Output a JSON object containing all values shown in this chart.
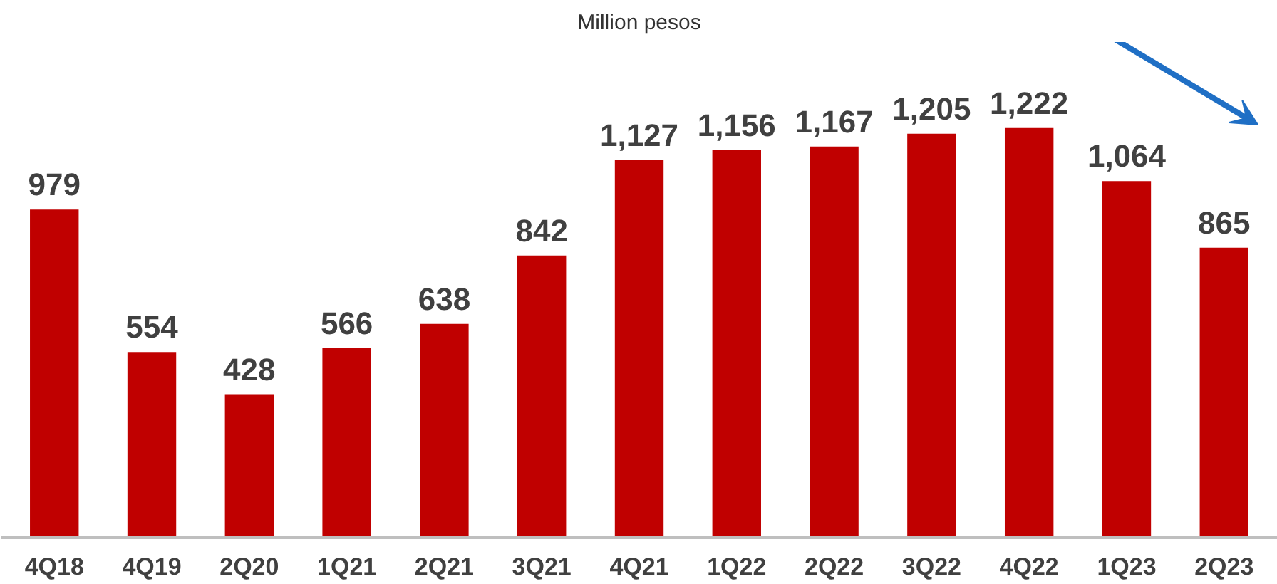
{
  "chart_data": {
    "type": "bar",
    "subtitle": "Million pesos",
    "categories": [
      "4Q18",
      "4Q19",
      "2Q20",
      "1Q21",
      "2Q21",
      "3Q21",
      "4Q21",
      "1Q22",
      "2Q22",
      "3Q22",
      "4Q22",
      "1Q23",
      "2Q23"
    ],
    "values": [
      979,
      554,
      428,
      566,
      638,
      842,
      1127,
      1156,
      1167,
      1205,
      1222,
      1064,
      865
    ],
    "value_labels": [
      "979",
      "554",
      "428",
      "566",
      "638",
      "842",
      "1,127",
      "1,156",
      "1,167",
      "1,205",
      "1,222",
      "1,064",
      "865"
    ],
    "color": "#c00000",
    "grid": false
  }
}
